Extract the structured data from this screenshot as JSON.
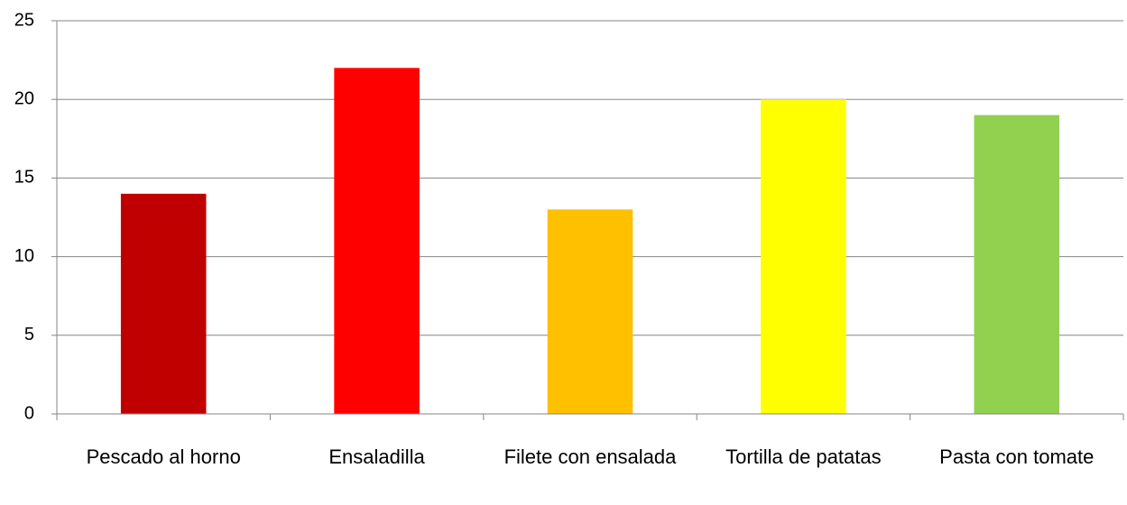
{
  "chart_data": {
    "type": "bar",
    "categories": [
      "Pescado al horno",
      "Ensaladilla",
      "Filete con ensalada",
      "Tortilla de patatas",
      "Pasta con tomate"
    ],
    "values": [
      14,
      22,
      13,
      20,
      19
    ],
    "colors": [
      "#c00000",
      "#ff0000",
      "#ffc000",
      "#ffff00",
      "#92d050"
    ],
    "ylim": [
      0,
      25
    ],
    "yticks": [
      0,
      5,
      10,
      15,
      20,
      25
    ],
    "grid": true
  }
}
